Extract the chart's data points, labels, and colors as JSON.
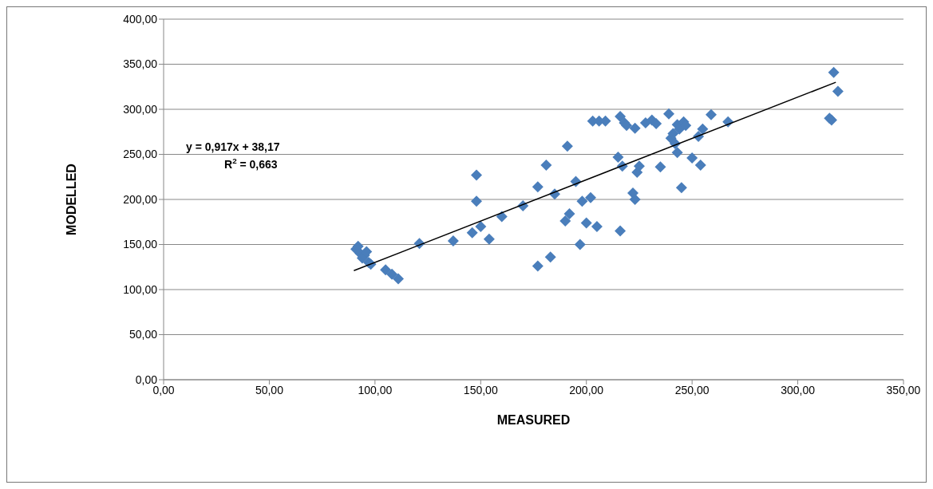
{
  "chart_data": {
    "type": "scatter",
    "xlabel": "MEASURED",
    "ylabel": "MODELLED",
    "annotations": [
      "y = 0,917x + 38,17",
      "R$^{2}$ = 0,663"
    ],
    "xlim": [
      0,
      350
    ],
    "ylim": [
      0,
      400
    ],
    "xticks": [
      {
        "value": 0,
        "label": "0,00"
      },
      {
        "value": 50,
        "label": "50,00"
      },
      {
        "value": 100,
        "label": "100,00"
      },
      {
        "value": 150,
        "label": "150,00"
      },
      {
        "value": 200,
        "label": "200,00"
      },
      {
        "value": 250,
        "label": "250,00"
      },
      {
        "value": 300,
        "label": "300,00"
      },
      {
        "value": 350,
        "label": "350,00"
      }
    ],
    "yticks": [
      {
        "value": 0,
        "label": "0,00"
      },
      {
        "value": 50,
        "label": "50,00"
      },
      {
        "value": 100,
        "label": "100,00"
      },
      {
        "value": 150,
        "label": "150,00"
      },
      {
        "value": 200,
        "label": "200,00"
      },
      {
        "value": 250,
        "label": "250,00"
      },
      {
        "value": 300,
        "label": "300,00"
      },
      {
        "value": 350,
        "label": "350,00"
      },
      {
        "value": 400,
        "label": "400,00"
      }
    ],
    "grid": "y",
    "legend": false,
    "marker": "diamond",
    "series": [
      {
        "type": "scatter",
        "color": "#4a7ebb",
        "x": [
          91,
          92,
          93,
          94,
          95,
          96,
          97,
          98,
          105,
          108,
          111,
          121,
          137,
          146,
          148,
          148,
          150,
          154,
          160,
          170,
          177,
          177,
          181,
          183,
          185,
          190,
          191,
          192,
          195,
          197,
          198,
          200,
          202,
          203,
          205,
          206,
          209,
          215,
          216,
          216,
          217,
          218,
          219,
          222,
          223,
          223,
          224,
          225,
          228,
          231,
          233,
          235,
          239,
          240,
          241,
          242,
          243,
          243,
          244,
          245,
          246,
          247,
          250,
          253,
          254,
          255,
          259,
          267,
          315,
          316,
          317,
          319
        ],
        "values": [
          145,
          148,
          140,
          135,
          138,
          142,
          130,
          128,
          122,
          117,
          112,
          151,
          154,
          163,
          227,
          198,
          170,
          156,
          181,
          193,
          214,
          126,
          238,
          136,
          206,
          176,
          259,
          184,
          220,
          150,
          198,
          174,
          202,
          287,
          170,
          287,
          287,
          247,
          165,
          292,
          237,
          285,
          282,
          207,
          279,
          200,
          230,
          237,
          285,
          288,
          284,
          236,
          295,
          268,
          273,
          262,
          252,
          283,
          278,
          213,
          286,
          282,
          246,
          270,
          238,
          278,
          294,
          286,
          290,
          288,
          341,
          320
        ]
      },
      {
        "type": "line",
        "color": "#000000",
        "marker": "none",
        "x": [
          90,
          318
        ],
        "values": [
          121,
          330
        ]
      }
    ]
  }
}
